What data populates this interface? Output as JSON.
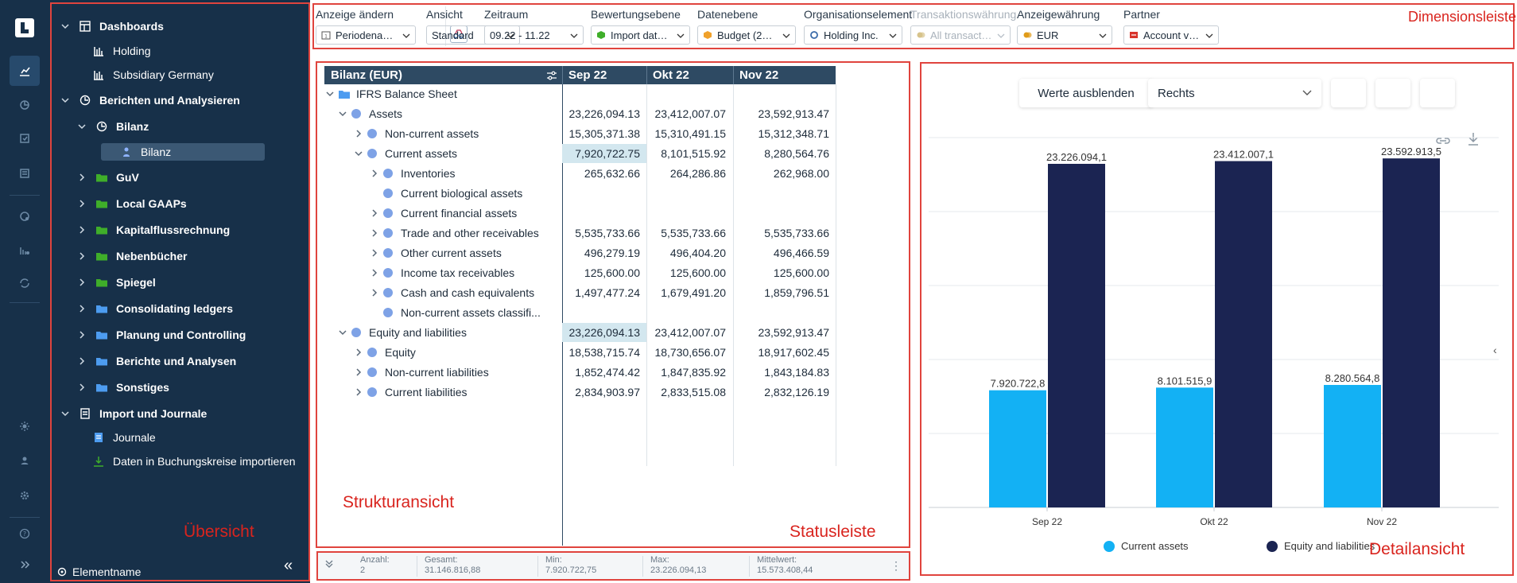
{
  "nav": {
    "items": [
      {
        "label": "Dashboards",
        "chev": "open",
        "icon": "dashboard-icon",
        "bold": true
      },
      {
        "label": "Holding",
        "chev": "",
        "icon": "bar-chart-icon",
        "bold": false
      },
      {
        "label": "Subsidiary Germany",
        "chev": "",
        "icon": "bar-chart-icon",
        "bold": false
      },
      {
        "label": "Berichten und Analysieren",
        "chev": "open",
        "icon": "pie-clock-icon",
        "bold": true
      },
      {
        "label": "Bilanz",
        "chev": "open",
        "icon": "pie-clock-icon",
        "bold": true
      },
      {
        "label": "Bilanz",
        "chev": "",
        "icon": "person-icon",
        "bold": false
      },
      {
        "label": "GuV",
        "chev": "closed",
        "icon": "folder-green-icon",
        "bold": true
      },
      {
        "label": "Local GAAPs",
        "chev": "closed",
        "icon": "folder-green-icon",
        "bold": true
      },
      {
        "label": "Kapitalflussrechnung",
        "chev": "closed",
        "icon": "folder-green-icon",
        "bold": true
      },
      {
        "label": "Nebenbücher",
        "chev": "closed",
        "icon": "folder-green-icon",
        "bold": true
      },
      {
        "label": "Spiegel",
        "chev": "closed",
        "icon": "folder-green-icon",
        "bold": true
      },
      {
        "label": "Consolidating ledgers",
        "chev": "closed",
        "icon": "folder-blue-icon",
        "bold": true
      },
      {
        "label": "Planung und Controlling",
        "chev": "closed",
        "icon": "folder-blue-icon",
        "bold": true
      },
      {
        "label": "Berichte und Analysen",
        "chev": "closed",
        "icon": "folder-blue-icon",
        "bold": true
      },
      {
        "label": "Sonstiges",
        "chev": "closed",
        "icon": "folder-blue-icon",
        "bold": true
      },
      {
        "label": "Import und Journale",
        "chev": "open",
        "icon": "journal-icon",
        "bold": true
      },
      {
        "label": "Journale",
        "chev": "",
        "icon": "journal-blue-icon",
        "bold": false
      },
      {
        "label": "Daten in Buchungskreise importieren",
        "chev": "",
        "icon": "import-icon",
        "bold": false
      }
    ],
    "footer_label": "Elementname",
    "collapse_label": "«"
  },
  "toolbar": {
    "dims": [
      {
        "label": "Anzeige ändern",
        "value": "Periodenansi...",
        "icon": "",
        "disabled": false
      },
      {
        "label": "Ansicht",
        "value": "Standard",
        "icon": "",
        "disabled": false
      },
      {
        "label": "Zeitraum",
        "value": "09.22 - 11.22",
        "icon": "",
        "disabled": false
      },
      {
        "label": "Bewertungsebene",
        "value": "Import data O...",
        "icon": "cube-green",
        "disabled": false
      },
      {
        "label": "Datenebene",
        "value": "Budget (2020...",
        "icon": "cube-orange",
        "disabled": false
      },
      {
        "label": "Organisationselement",
        "value": "Holding Inc.",
        "icon": "circle-blue",
        "disabled": false
      },
      {
        "label": "Transaktionswährung",
        "value": "All transactio...",
        "icon": "coins",
        "disabled": true
      },
      {
        "label": "Anzeigewährung",
        "value": "EUR",
        "icon": "coins",
        "disabled": false
      },
      {
        "label": "Partner",
        "value": "Account value",
        "icon": "partner",
        "disabled": false
      }
    ]
  },
  "grid": {
    "title": "Bilanz (EUR)",
    "columns": [
      "Sep 22",
      "Okt 22",
      "Nov 22"
    ],
    "rows": [
      {
        "label": "IFRS Balance Sheet",
        "level": 0,
        "chev": "open",
        "kind": "folder",
        "values": [
          "",
          "",
          ""
        ],
        "hl": false
      },
      {
        "label": "Assets",
        "level": 1,
        "chev": "open",
        "kind": "dot",
        "values": [
          "23,226,094.13",
          "23,412,007.07",
          "23,592,913.47"
        ],
        "hl": false
      },
      {
        "label": "Non-current assets",
        "level": 2,
        "chev": "closed",
        "kind": "dot",
        "values": [
          "15,305,371.38",
          "15,310,491.15",
          "15,312,348.71"
        ],
        "hl": false
      },
      {
        "label": "Current assets",
        "level": 2,
        "chev": "open",
        "kind": "dot",
        "values": [
          "7,920,722.75",
          "8,101,515.92",
          "8,280,564.76"
        ],
        "hl": true
      },
      {
        "label": "Inventories",
        "level": 3,
        "chev": "closed",
        "kind": "dot",
        "values": [
          "265,632.66",
          "264,286.86",
          "262,968.00"
        ],
        "hl": false
      },
      {
        "label": "Current biological assets",
        "level": 3,
        "chev": "",
        "kind": "dot",
        "values": [
          "",
          "",
          ""
        ],
        "hl": false
      },
      {
        "label": "Current financial assets",
        "level": 3,
        "chev": "closed",
        "kind": "dot",
        "values": [
          "",
          "",
          ""
        ],
        "hl": false
      },
      {
        "label": "Trade and other receivables",
        "level": 3,
        "chev": "closed",
        "kind": "dot",
        "values": [
          "5,535,733.66",
          "5,535,733.66",
          "5,535,733.66"
        ],
        "hl": false
      },
      {
        "label": "Other current assets",
        "level": 3,
        "chev": "closed",
        "kind": "dot",
        "values": [
          "496,279.19",
          "496,404.20",
          "496,466.59"
        ],
        "hl": false
      },
      {
        "label": "Income tax receivables",
        "level": 3,
        "chev": "closed",
        "kind": "dot",
        "values": [
          "125,600.00",
          "125,600.00",
          "125,600.00"
        ],
        "hl": false
      },
      {
        "label": "Cash and cash equivalents",
        "level": 3,
        "chev": "closed",
        "kind": "dot",
        "values": [
          "1,497,477.24",
          "1,679,491.20",
          "1,859,796.51"
        ],
        "hl": false
      },
      {
        "label": "Non-current assets classifi...",
        "level": 3,
        "chev": "",
        "kind": "dot",
        "values": [
          "",
          "",
          ""
        ],
        "hl": false
      },
      {
        "label": "Equity and liabilities",
        "level": 1,
        "chev": "open",
        "kind": "dot",
        "values": [
          "23,226,094.13",
          "23,412,007.07",
          "23,592,913.47"
        ],
        "hl": true
      },
      {
        "label": "Equity",
        "level": 2,
        "chev": "closed",
        "kind": "dot",
        "values": [
          "18,538,715.74",
          "18,730,656.07",
          "18,917,602.45"
        ],
        "hl": false
      },
      {
        "label": "Non-current liabilities",
        "level": 2,
        "chev": "closed",
        "kind": "dot",
        "values": [
          "1,852,474.42",
          "1,847,835.92",
          "1,843,184.83"
        ],
        "hl": false
      },
      {
        "label": "Current liabilities",
        "level": 2,
        "chev": "closed",
        "kind": "dot",
        "values": [
          "2,834,903.97",
          "2,833,515.08",
          "2,832,126.19"
        ],
        "hl": false
      }
    ]
  },
  "status": {
    "items": [
      {
        "key": "Anzahl:",
        "value": "2"
      },
      {
        "key": "Gesamt:",
        "value": "31.146.816,88"
      },
      {
        "key": "Min:",
        "value": "7.920.722,75"
      },
      {
        "key": "Max:",
        "value": "23.226.094,13"
      },
      {
        "key": "Mittelwert:",
        "value": "15.573.408,44"
      }
    ]
  },
  "detail": {
    "hide_values_label": "Werte ausblenden",
    "position_select": "Rechts",
    "colors": {
      "current": "#13b1f4",
      "equity": "#1b2452"
    }
  },
  "chart_data": {
    "type": "bar",
    "categories": [
      "Sep 22",
      "Okt 22",
      "Nov 22"
    ],
    "series": [
      {
        "name": "Current assets",
        "values": [
          7920722.8,
          8101515.9,
          8280564.8
        ],
        "labels": [
          "7.920.722,8",
          "8.101.515,9",
          "8.280.564,8"
        ]
      },
      {
        "name": "Equity and liabilities",
        "values": [
          23226094.1,
          23412007.1,
          23592913.5
        ],
        "labels": [
          "23.226.094,1",
          "23.412.007,1",
          "23.592.913,5"
        ]
      }
    ],
    "ylim": [
      0,
      25000000
    ],
    "grid": true,
    "legend": "bottom"
  },
  "annotations": {
    "uebersicht": "Übersicht",
    "dimensionsleiste": "Dimensionsleiste",
    "strukturansicht": "Strukturansicht",
    "statusleiste": "Statusleiste",
    "detailansicht": "Detailansicht"
  }
}
